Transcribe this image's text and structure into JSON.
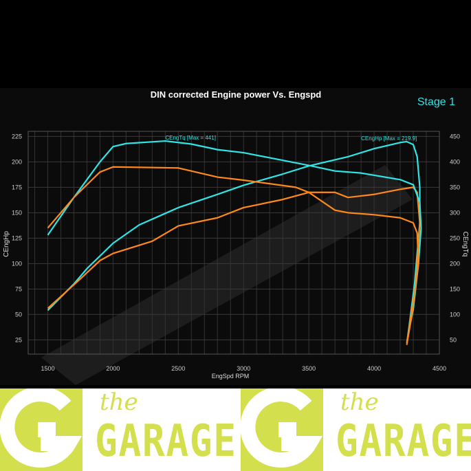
{
  "chart_data": {
    "type": "line",
    "title": "DIN corrected Engine power Vs. Engspd",
    "badge": "Stage 1",
    "xlabel": "EngSpd RPM",
    "ylabel": "CEngHp",
    "y2label": "CEngTq",
    "xlim": [
      1350,
      4500
    ],
    "ylim": [
      11,
      230
    ],
    "y2lim": [
      22,
      460
    ],
    "xticks": [
      1500,
      2000,
      2500,
      3000,
      3500,
      4000,
      4500
    ],
    "yticks": [
      25,
      50,
      75,
      100,
      125,
      150,
      175,
      200,
      225
    ],
    "y2ticks": [
      50,
      100,
      150,
      200,
      250,
      300,
      350,
      400,
      450
    ],
    "grid": true,
    "annotations": [
      {
        "text": "CEngTq [Max = 441]",
        "x": 2400,
        "axis": "y2",
        "y": 441
      },
      {
        "text": "CEngHp [Max = 219.9]",
        "x": 3900,
        "axis": "y",
        "y": 219.9
      }
    ],
    "colors": {
      "tuned": "#2ee6e6",
      "stock": "#ff8a1a"
    },
    "series": [
      {
        "key": "tuned-hp",
        "axis": "y",
        "color": "#2ee6e6",
        "points": [
          [
            1500,
            54
          ],
          [
            1700,
            80
          ],
          [
            1800,
            95
          ],
          [
            2000,
            120
          ],
          [
            2200,
            138
          ],
          [
            2500,
            155
          ],
          [
            2800,
            168
          ],
          [
            3000,
            177
          ],
          [
            3300,
            188
          ],
          [
            3500,
            196
          ],
          [
            3800,
            205
          ],
          [
            4000,
            213
          ],
          [
            4200,
            219
          ],
          [
            4250,
            219.9
          ],
          [
            4300,
            217
          ],
          [
            4330,
            205
          ],
          [
            4350,
            175
          ],
          [
            4350,
            140
          ],
          [
            4310,
            80
          ],
          [
            4260,
            30
          ]
        ]
      },
      {
        "key": "stock-hp",
        "axis": "y",
        "color": "#ff8a1a",
        "points": [
          [
            1500,
            56
          ],
          [
            1750,
            85
          ],
          [
            1900,
            103
          ],
          [
            2000,
            110
          ],
          [
            2300,
            122
          ],
          [
            2500,
            137
          ],
          [
            2800,
            145
          ],
          [
            3000,
            155
          ],
          [
            3300,
            163
          ],
          [
            3500,
            170
          ],
          [
            3700,
            170
          ],
          [
            3800,
            165
          ],
          [
            4000,
            168
          ],
          [
            4200,
            173
          ],
          [
            4300,
            175
          ],
          [
            4330,
            170
          ],
          [
            4350,
            140
          ],
          [
            4320,
            80
          ],
          [
            4250,
            22
          ]
        ]
      },
      {
        "key": "tuned-tq",
        "axis": "y2",
        "color": "#2ee6e6",
        "points": [
          [
            1500,
            256
          ],
          [
            1700,
            330
          ],
          [
            1900,
            400
          ],
          [
            2000,
            430
          ],
          [
            2100,
            436
          ],
          [
            2400,
            441
          ],
          [
            2600,
            435
          ],
          [
            2800,
            424
          ],
          [
            3000,
            418
          ],
          [
            3200,
            408
          ],
          [
            3500,
            393
          ],
          [
            3700,
            382
          ],
          [
            3900,
            378
          ],
          [
            4200,
            365
          ],
          [
            4300,
            355
          ],
          [
            4350,
            320
          ],
          [
            4360,
            270
          ],
          [
            4340,
            200
          ],
          [
            4300,
            110
          ],
          [
            4260,
            60
          ]
        ]
      },
      {
        "key": "stock-tq",
        "axis": "y2",
        "color": "#ff8a1a",
        "points": [
          [
            1500,
            270
          ],
          [
            1700,
            330
          ],
          [
            1900,
            380
          ],
          [
            2000,
            390
          ],
          [
            2500,
            388
          ],
          [
            2800,
            370
          ],
          [
            3000,
            364
          ],
          [
            3400,
            350
          ],
          [
            3500,
            340
          ],
          [
            3700,
            305
          ],
          [
            3800,
            300
          ],
          [
            4000,
            296
          ],
          [
            4200,
            290
          ],
          [
            4300,
            280
          ],
          [
            4330,
            260
          ],
          [
            4340,
            200
          ],
          [
            4290,
            100
          ],
          [
            4250,
            40
          ]
        ]
      }
    ]
  },
  "logo": {
    "the": "the",
    "garage": "GARAGE"
  }
}
